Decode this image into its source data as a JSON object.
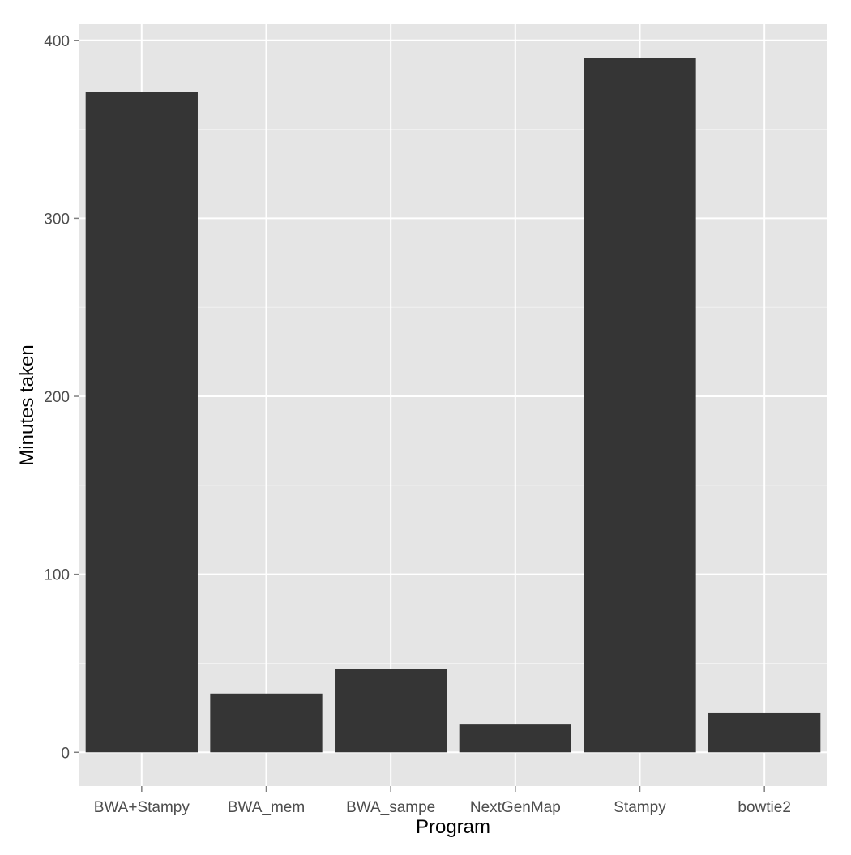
{
  "chart_data": {
    "type": "bar",
    "xlabel": "Program",
    "ylabel": "Minutes taken",
    "categories": [
      "BWA+Stampy",
      "BWA_mem",
      "BWA_sampe",
      "NextGenMap",
      "Stampy",
      "bowtie2"
    ],
    "values": [
      371,
      33,
      47,
      16,
      390,
      22
    ],
    "ylim": [
      -19,
      409
    ],
    "yticks": [
      0,
      100,
      200,
      300,
      400
    ],
    "ytick_labels": [
      "0",
      "100",
      "200",
      "300",
      "400"
    ],
    "grid": true,
    "legend": "none",
    "colors": {
      "bar": "#353535",
      "panel": "#e5e5e5",
      "grid_major": "#ffffff",
      "grid_minor": "#f2f2f2",
      "tick_text": "#4d4d4d",
      "title_text": "#000000",
      "page": "#ffffff"
    }
  }
}
